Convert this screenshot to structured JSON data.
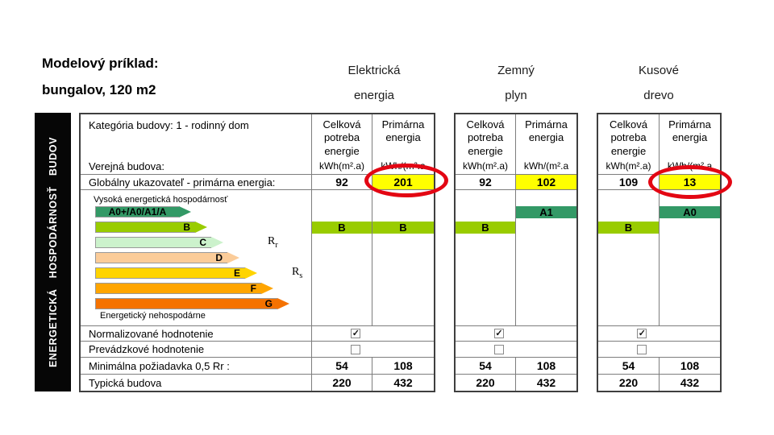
{
  "title": {
    "line1": "Modelový príklad:",
    "line2": "bungalov, 120 m2"
  },
  "sidebar": {
    "label": "ENERGETICKÁ HOSPODÁRNOSŤ BUDOV"
  },
  "colors": {
    "highlight": "#ffff00",
    "class_a": "#339966",
    "class_b": "#99cc00",
    "circle": "#e30613"
  },
  "table": {
    "category_label": "Kategória budovy: 1 - rodinný dom",
    "public_building_label": "Verejná budova:",
    "global_indicator_label": "Globálny ukazovateľ - primárna energia:",
    "col_total_header": "Celková potreba energie",
    "col_primary_header": "Primárna energia",
    "col_total_unit": "kWh(m².a)",
    "col_primary_unit": "kWh/(m².a",
    "high_efficiency_label": "Vysoká energetická hospodárnosť",
    "low_efficiency_label": "Energetický nehospodárne",
    "r_labels": [
      {
        "base": "R",
        "sub": "r"
      },
      {
        "base": "R",
        "sub": "s"
      }
    ],
    "rows": {
      "normalized": "Normalizované hodnotenie",
      "operational": "Prevádzkové hodnotenie",
      "minimal": "Minimálna požiadavka 0,5 Rr :",
      "typical": "Typická budova"
    },
    "scale": [
      {
        "label": "A0+/A0/A1/A",
        "color": "#339966"
      },
      {
        "label": "B",
        "color": "#99cc00"
      },
      {
        "label": "C",
        "color": "#ccf2cc"
      },
      {
        "label": "D",
        "color": "#fbcc99"
      },
      {
        "label": "E",
        "color": "#ffd400"
      },
      {
        "label": "F",
        "color": "#ffa500"
      },
      {
        "label": "G",
        "color": "#f57200"
      }
    ]
  },
  "sections": [
    {
      "name": "Elektrická energia",
      "header": {
        "line1": "Elektrická",
        "line2": "energia"
      },
      "total": "92",
      "primary": "201",
      "rating_total": "B",
      "rating_primary": "B",
      "normalized_check": "✓",
      "operational_check": "",
      "minimal_total": "54",
      "minimal_primary": "108",
      "typical_total": "220",
      "typical_primary": "432"
    },
    {
      "name": "Zemný plyn",
      "header": {
        "line1": "Zemný",
        "line2": "plyn"
      },
      "total": "92",
      "primary": "102",
      "rating_total": "B",
      "rating_primary": "A1",
      "normalized_check": "✓",
      "operational_check": "",
      "minimal_total": "54",
      "minimal_primary": "108",
      "typical_total": "220",
      "typical_primary": "432"
    },
    {
      "name": "Kusové drevo",
      "header": {
        "line1": "Kusové",
        "line2": "drevo"
      },
      "total": "109",
      "primary": "13",
      "rating_total": "B",
      "rating_primary": "A0",
      "normalized_check": "✓",
      "operational_check": "",
      "minimal_total": "54",
      "minimal_primary": "108",
      "typical_total": "220",
      "typical_primary": "432"
    }
  ]
}
